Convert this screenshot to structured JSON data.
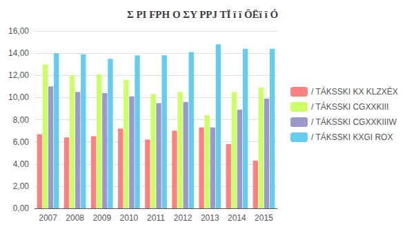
{
  "chart_data": {
    "type": "bar",
    "title": "Σ PI FPH O ΣY PPJ TÏ ï ï ÖËï ï Ó",
    "categories": [
      "2007",
      "2008",
      "2009",
      "2010",
      "2011",
      "2012",
      "2013",
      "2014",
      "2015"
    ],
    "series": [
      {
        "name": "/ TÁKSSKI KX KLZXÉX",
        "color": "#FF8080",
        "values": [
          6.7,
          6.4,
          6.5,
          7.2,
          6.2,
          7.0,
          7.3,
          5.8,
          4.3
        ]
      },
      {
        "name": "/ TÁKSSKI CGXXKIII",
        "color": "#CCFF66",
        "values": [
          13.0,
          12.0,
          12.1,
          11.6,
          10.3,
          10.5,
          8.4,
          10.5,
          10.9
        ]
      },
      {
        "name": "/ TÁKSSKI CGXXKIIIW",
        "color": "#9999CC",
        "values": [
          11.0,
          10.5,
          10.4,
          10.1,
          9.5,
          9.6,
          7.3,
          8.9,
          9.9
        ]
      },
      {
        "name": "/ TÁKSSKI KXGI ROX",
        "color": "#66CCEE",
        "values": [
          14.0,
          13.9,
          13.5,
          13.8,
          13.8,
          14.1,
          14.8,
          14.4,
          14.4
        ]
      }
    ],
    "ylim": [
      0,
      16
    ],
    "yticks": [
      {
        "value": 0,
        "label": "0,00"
      },
      {
        "value": 2.0,
        "label": "2,00"
      },
      {
        "value": 4.0,
        "label": "4,00"
      },
      {
        "value": 6.0,
        "label": "6,00"
      },
      {
        "value": 8.0,
        "label": "8,00"
      },
      {
        "value": 10.0,
        "label": "10,00"
      },
      {
        "value": 12.0,
        "label": "12,00"
      },
      {
        "value": 14.0,
        "label": "14,00"
      },
      {
        "value": 16.0,
        "label": "16,00"
      }
    ],
    "grid": true,
    "legend": "right"
  }
}
